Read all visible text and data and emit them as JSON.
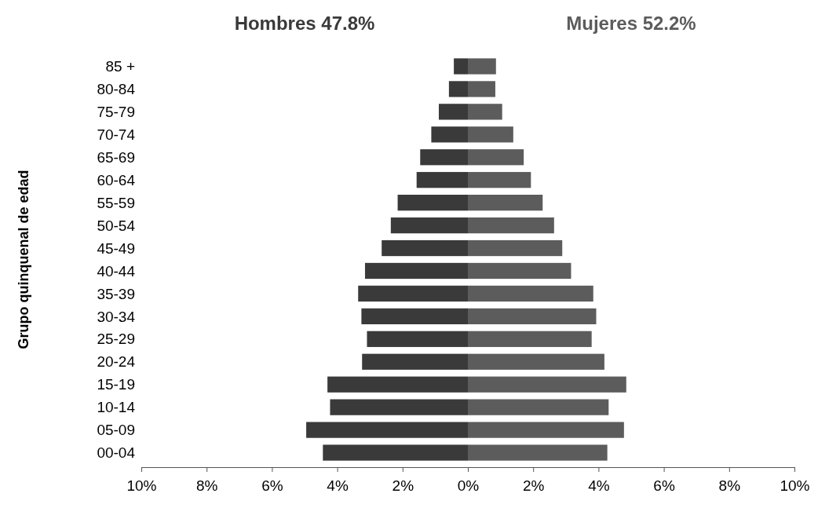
{
  "chart_data": {
    "type": "bar",
    "orientation": "horizontal",
    "stacked": true,
    "ylabel": "Grupo quinquenal de edad",
    "categories": [
      "85 +",
      "80-84",
      "75-79",
      "70-74",
      "65-69",
      "60-64",
      "55-59",
      "50-54",
      "45-49",
      "40-44",
      "35-39",
      "30-34",
      "25-29",
      "20-24",
      "15-19",
      "10-14",
      "05-09",
      "00-04"
    ],
    "series": [
      {
        "name": "Hombres 47.8%",
        "color": "#3a3a3a",
        "values": [
          -0.43,
          -0.58,
          -0.89,
          -1.12,
          -1.46,
          -1.57,
          -2.15,
          -2.36,
          -2.64,
          -3.15,
          -3.36,
          -3.26,
          -3.09,
          -3.24,
          -4.3,
          -4.22,
          -4.95,
          -4.44
        ]
      },
      {
        "name": "Mujeres 52.2%",
        "color": "#5c5c5c",
        "values": [
          0.86,
          0.84,
          1.05,
          1.39,
          1.71,
          1.93,
          2.29,
          2.64,
          2.89,
          3.16,
          3.84,
          3.93,
          3.79,
          4.18,
          4.85,
          4.31,
          4.78,
          4.27
        ]
      }
    ],
    "xlim": [
      -10,
      10
    ],
    "xticks": [
      {
        "value": -10,
        "label": "10%"
      },
      {
        "value": -8,
        "label": "8%"
      },
      {
        "value": -6,
        "label": "6%"
      },
      {
        "value": -4,
        "label": "4%"
      },
      {
        "value": -2,
        "label": "2%"
      },
      {
        "value": 0,
        "label": "0%"
      },
      {
        "value": 2,
        "label": "2%"
      },
      {
        "value": 4,
        "label": "4%"
      },
      {
        "value": 6,
        "label": "6%"
      },
      {
        "value": 8,
        "label": "8%"
      },
      {
        "value": 10,
        "label": "10%"
      }
    ],
    "legend": "top"
  }
}
